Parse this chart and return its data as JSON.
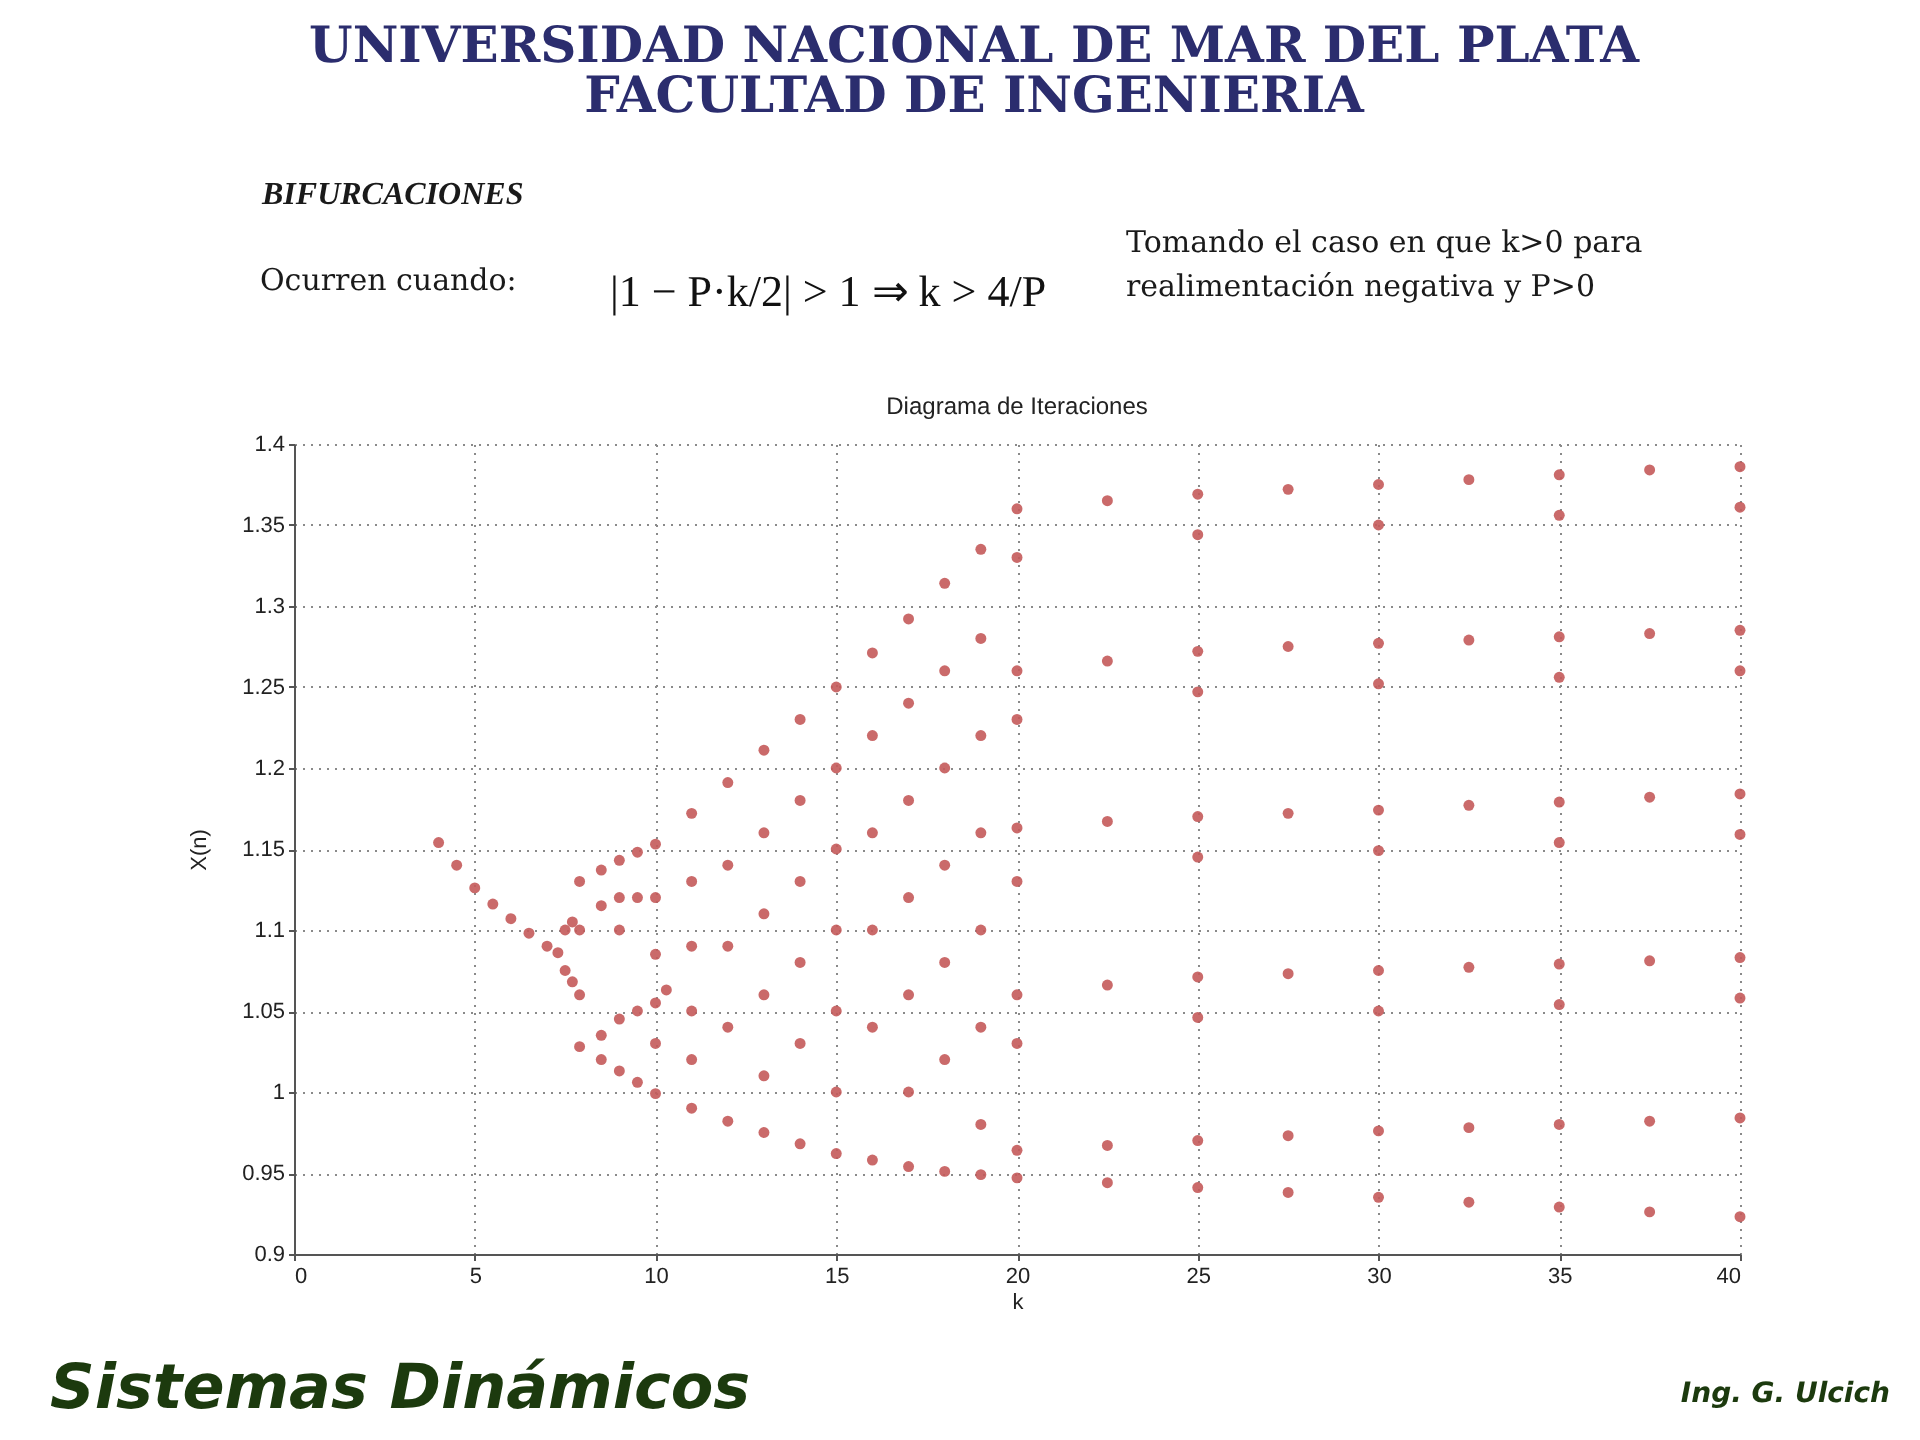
{
  "chart_data": {
    "type": "scatter",
    "title": "Diagrama de Iteraciones",
    "xlabel": "k",
    "ylabel": "X(n)",
    "annotations": [
      "UNIVERSIDAD NACIONAL DE MAR DEL PLATA",
      "FACULTAD DE INGENIERIA",
      "BIFURCACIONES",
      "Ocurren cuando:",
      "|1 − P·k/2| > 1 ⇒ k > 4/P",
      "Tomando el caso en que k>0 para realimentación negativa y P>0",
      "Sistemas Dinámicos",
      "Ing. G. Ulcich"
    ],
    "x": [
      4,
      4.5,
      5,
      5.5,
      6,
      6.5,
      7,
      7.3,
      7.5,
      7.5,
      7.7,
      7.7,
      7.9,
      7.9,
      7.9,
      7.9,
      8.5,
      8.5,
      9,
      9,
      9,
      9.5,
      9.5,
      10,
      10,
      10,
      8.5,
      8.5,
      9,
      9,
      9.5,
      9.5,
      10,
      10,
      10,
      10.3,
      11,
      11,
      11,
      11,
      11,
      11,
      12,
      12,
      12,
      12,
      12,
      13,
      13,
      13,
      13,
      13,
      13,
      14,
      14,
      14,
      14,
      14,
      14,
      15,
      15,
      15,
      15,
      15,
      15,
      15,
      16,
      16,
      16,
      16,
      16,
      16,
      17,
      17,
      17,
      17,
      17,
      17,
      17,
      18,
      18,
      18,
      18,
      18,
      18,
      18,
      19,
      19,
      19,
      19,
      19,
      19,
      19,
      19,
      20,
      20,
      20,
      20,
      20,
      20,
      20,
      20,
      20,
      20,
      22.5,
      22.5,
      22.5,
      22.5,
      22.5,
      22.5,
      25,
      25,
      25,
      25,
      25,
      25,
      25,
      25,
      25,
      25,
      27.5,
      27.5,
      27.5,
      27.5,
      27.5,
      27.5,
      30,
      30,
      30,
      30,
      30,
      30,
      30,
      30,
      30,
      30,
      32.5,
      32.5,
      32.5,
      32.5,
      32.5,
      32.5,
      35,
      35,
      35,
      35,
      35,
      35,
      35,
      35,
      35,
      35,
      37.5,
      37.5,
      37.5,
      37.5,
      37.5,
      37.5,
      40,
      40,
      40,
      40,
      40,
      40,
      40,
      40,
      40,
      40
    ],
    "values": [
      1.154,
      1.14,
      1.126,
      1.116,
      1.107,
      1.098,
      1.09,
      1.086,
      1.1,
      1.075,
      1.105,
      1.068,
      1.13,
      1.1,
      1.06,
      1.028,
      1.137,
      1.115,
      1.143,
      1.12,
      1.1,
      1.148,
      1.12,
      1.153,
      1.12,
      1.085,
      1.035,
      1.02,
      1.045,
      1.013,
      1.05,
      1.006,
      1.055,
      1.03,
      0.999,
      1.063,
      1.172,
      1.13,
      1.09,
      1.05,
      1.02,
      0.99,
      1.191,
      1.14,
      1.09,
      1.04,
      0.982,
      1.211,
      1.16,
      1.11,
      1.06,
      1.01,
      0.975,
      1.23,
      1.18,
      1.13,
      1.08,
      1.03,
      0.968,
      1.25,
      1.2,
      1.15,
      1.1,
      1.05,
      1.0,
      0.962,
      1.271,
      1.22,
      1.16,
      1.1,
      1.04,
      0.958,
      1.292,
      1.24,
      1.18,
      1.12,
      1.06,
      1.0,
      0.954,
      1.314,
      1.26,
      1.2,
      1.14,
      1.08,
      1.02,
      0.951,
      1.335,
      1.28,
      1.22,
      1.16,
      1.1,
      1.04,
      0.98,
      0.949,
      1.36,
      1.33,
      1.26,
      1.23,
      1.163,
      1.13,
      1.06,
      1.03,
      0.964,
      0.947,
      1.365,
      1.266,
      1.167,
      1.066,
      0.967,
      0.944,
      1.369,
      1.344,
      1.272,
      1.247,
      1.17,
      1.145,
      1.071,
      1.046,
      0.97,
      0.941,
      1.372,
      1.275,
      1.172,
      1.073,
      0.973,
      0.938,
      1.375,
      1.35,
      1.277,
      1.252,
      1.174,
      1.149,
      1.075,
      1.05,
      0.976,
      0.935,
      1.378,
      1.279,
      1.177,
      1.077,
      0.978,
      0.932,
      1.381,
      1.356,
      1.281,
      1.256,
      1.179,
      1.154,
      1.079,
      1.054,
      0.98,
      0.929,
      1.384,
      1.283,
      1.182,
      1.081,
      0.982,
      0.926,
      1.386,
      1.361,
      1.285,
      1.26,
      1.184,
      1.159,
      1.083,
      1.058,
      0.984,
      0.923
    ],
    "color": "#c45a5a",
    "marker": "circle",
    "grid": true,
    "xlim": [
      0,
      40
    ],
    "xticks": [
      0,
      5,
      10,
      15,
      20,
      25,
      30,
      35,
      40
    ],
    "ylim": [
      0.9,
      1.4
    ],
    "yticks": [
      0.9,
      0.95,
      1,
      1.05,
      1.1,
      1.15,
      1.2,
      1.25,
      1.3,
      1.35,
      1.4
    ]
  }
}
